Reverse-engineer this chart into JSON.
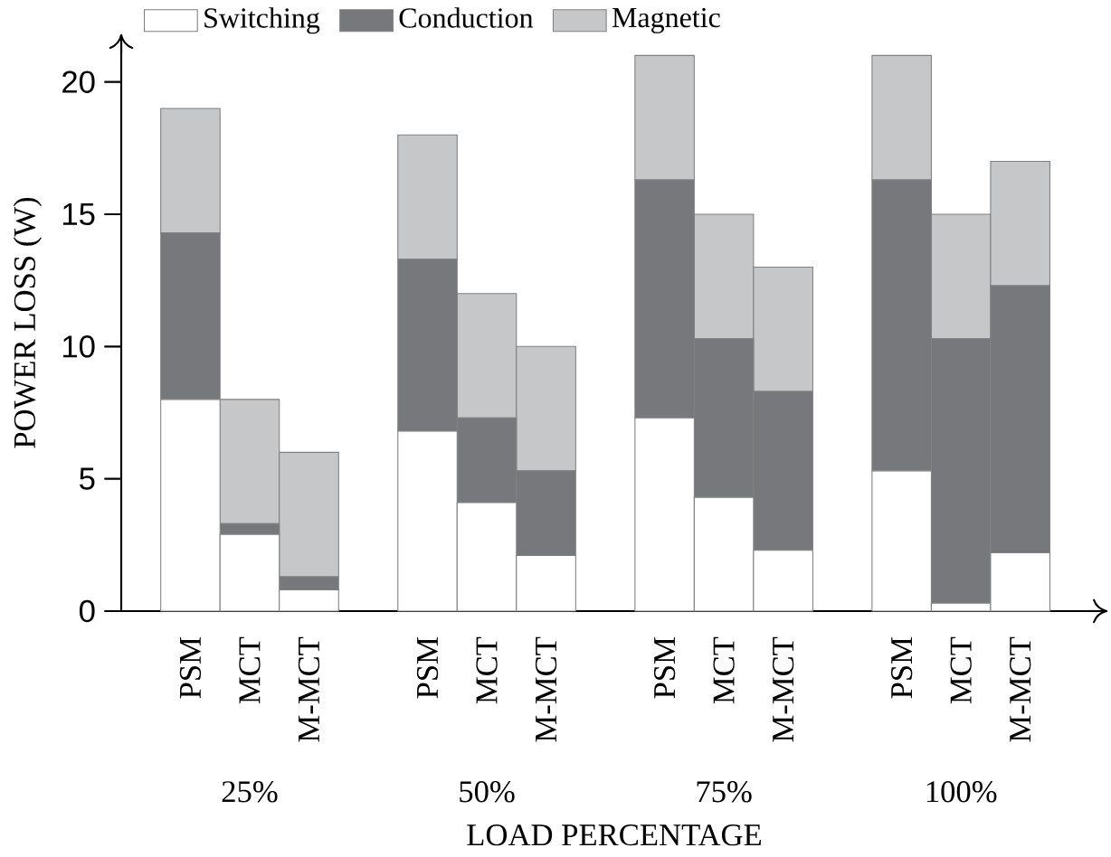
{
  "chart_data": {
    "type": "bar",
    "stacked": true,
    "xlabel": "LOAD PERCENTAGE",
    "ylabel": "POWER LOSS (W)",
    "categories": [
      "PSM",
      "MCT",
      "M-MCT",
      "PSM",
      "MCT",
      "M-MCT",
      "PSM",
      "MCT",
      "M-MCT",
      "PSM",
      "MCT",
      "M-MCT"
    ],
    "series": [
      {
        "name": "Switching",
        "color": "#ffffff",
        "values": [
          8,
          2.9,
          0.8,
          6.8,
          4.1,
          2.1,
          7.3,
          4.3,
          2.3,
          5.3,
          0.3,
          2.2
        ]
      },
      {
        "name": "Conduction",
        "color": "#77787b",
        "values": [
          6.3,
          0.4,
          0.5,
          6.5,
          3.2,
          3.2,
          9.0,
          6.0,
          6.0,
          11.0,
          10.0,
          10.1
        ]
      },
      {
        "name": "Magnetic",
        "color": "#c6c7c9",
        "values": [
          4.7,
          4.7,
          4.7,
          4.7,
          4.7,
          4.7,
          4.7,
          4.7,
          4.7,
          4.7,
          4.7,
          4.7
        ]
      }
    ],
    "annotations": [
      "25%",
      "50%",
      "75%",
      "100%"
    ],
    "ylim": [
      0,
      21.8
    ],
    "yticks": [
      0,
      5,
      10,
      15,
      20
    ],
    "grid": false,
    "legend": "top left"
  }
}
